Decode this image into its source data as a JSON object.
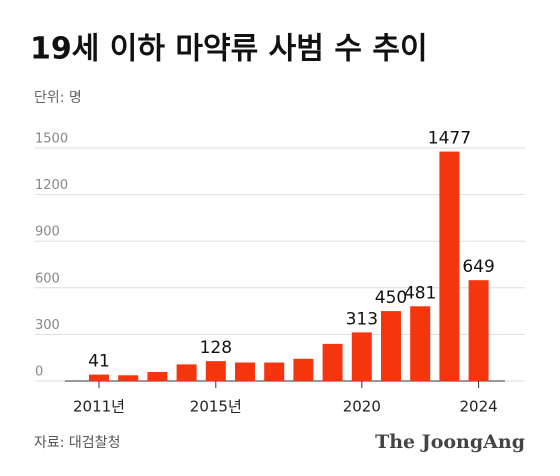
{
  "chart_data": {
    "type": "bar",
    "title": "19세 이하 마약류 사범 수 추이",
    "subtitle": "단위: 명",
    "source": "자료: 대검찰청",
    "brand": "The JoongAng",
    "categories": [
      "2011년",
      null,
      null,
      null,
      "2015년",
      null,
      null,
      null,
      null,
      "2020",
      null,
      null,
      null,
      "2024"
    ],
    "values": [
      41,
      37,
      58,
      107,
      128,
      119,
      119,
      143,
      239,
      313,
      450,
      481,
      1477,
      649
    ],
    "value_labels": [
      "41",
      null,
      null,
      null,
      "128",
      null,
      null,
      null,
      null,
      "313",
      "450",
      "481",
      "1477",
      "649"
    ],
    "color": "#f5350d",
    "ylim": [
      0,
      1500
    ],
    "yticks": [
      0,
      300,
      600,
      900,
      1200,
      1500
    ],
    "grid": true
  }
}
